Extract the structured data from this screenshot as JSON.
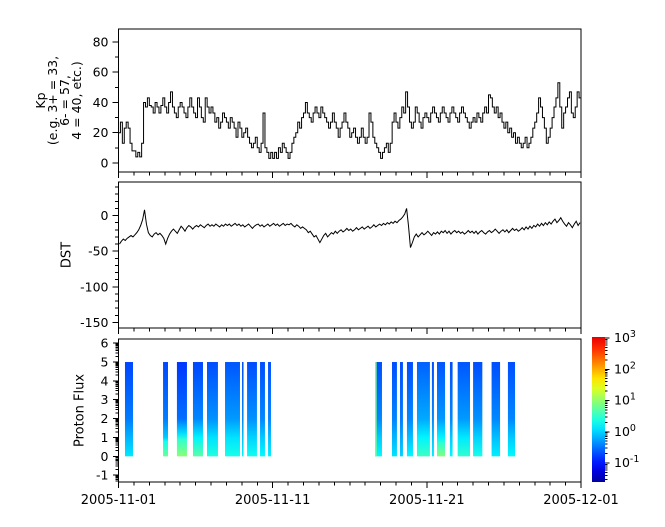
{
  "figure": {
    "background": "#ffffff",
    "axis_color": "#000000",
    "line_color": "#000000"
  },
  "x_axis": {
    "tick_labels": [
      "2005-11-01",
      "2005-11-11",
      "2005-11-21",
      "2005-12-01"
    ],
    "tick_days": [
      0,
      10,
      20,
      30
    ],
    "minor_step_days": 1,
    "range_days": [
      0,
      30
    ]
  },
  "panels": {
    "kp": {
      "ylabel_lines": [
        "Kp",
        "(e.g. 3+ = 33,",
        "6- = 57,",
        "4 = 40, etc.)"
      ],
      "yticks": [
        0,
        20,
        40,
        60,
        80
      ],
      "yminors": [
        10,
        30,
        50,
        70
      ],
      "ylim": [
        -6,
        88.6
      ]
    },
    "dst": {
      "ylabel": "DST",
      "yticks": [
        0,
        -50,
        -100,
        -150
      ],
      "yminor_step": 10,
      "ylim": [
        -157.7,
        47
      ]
    },
    "proton": {
      "ylabel": "Proton Flux",
      "yticks": [
        6,
        5,
        4,
        3,
        2,
        1,
        0,
        -1
      ],
      "ylim": [
        -1.36,
        6.22
      ],
      "bar_value_span": [
        0,
        5
      ]
    }
  },
  "colorbar": {
    "labels": [
      {
        "base": "10",
        "exp": "3"
      },
      {
        "base": "10",
        "exp": "2"
      },
      {
        "base": "10",
        "exp": "1"
      },
      {
        "base": "10",
        "exp": "0"
      },
      {
        "base": "10",
        "exp": "-1"
      }
    ],
    "decades": [
      3,
      2,
      1,
      0,
      -1
    ],
    "log_range": [
      -1.61,
      3.03
    ],
    "colormap": "jet"
  },
  "chart_data": [
    {
      "type": "line",
      "style": "step",
      "title": "Kp index (value = Kp*10, e.g. 3+ = 33)",
      "x_start": "2005-11-01",
      "x_step_hours": 3,
      "ylim": [
        -6,
        88.6
      ],
      "values": [
        20,
        27,
        13,
        23,
        27,
        23,
        13,
        8,
        8,
        4,
        7,
        4,
        13,
        40,
        37,
        43,
        38,
        37,
        33,
        40,
        37,
        33,
        38,
        43,
        37,
        33,
        40,
        47,
        37,
        33,
        30,
        37,
        40,
        37,
        33,
        30,
        37,
        43,
        37,
        33,
        30,
        43,
        37,
        30,
        27,
        43,
        37,
        33,
        37,
        33,
        27,
        30,
        23,
        27,
        33,
        30,
        27,
        23,
        30,
        27,
        23,
        17,
        27,
        23,
        17,
        20,
        23,
        17,
        13,
        10,
        13,
        17,
        10,
        7,
        13,
        33,
        10,
        7,
        3,
        7,
        3,
        7,
        3,
        10,
        7,
        13,
        10,
        7,
        3,
        7,
        13,
        17,
        20,
        27,
        23,
        30,
        33,
        40,
        33,
        30,
        27,
        33,
        37,
        33,
        30,
        37,
        33,
        30,
        27,
        23,
        27,
        33,
        27,
        23,
        17,
        23,
        27,
        33,
        27,
        23,
        17,
        20,
        23,
        17,
        13,
        17,
        23,
        17,
        13,
        17,
        33,
        27,
        17,
        13,
        10,
        7,
        3,
        7,
        10,
        13,
        7,
        13,
        27,
        33,
        27,
        23,
        30,
        37,
        33,
        47,
        37,
        27,
        23,
        27,
        37,
        33,
        27,
        23,
        30,
        33,
        30,
        27,
        33,
        37,
        33,
        30,
        27,
        33,
        37,
        33,
        30,
        27,
        33,
        37,
        33,
        30,
        27,
        33,
        37,
        33,
        30,
        27,
        23,
        27,
        30,
        27,
        33,
        30,
        27,
        33,
        37,
        33,
        45,
        43,
        37,
        33,
        37,
        30,
        33,
        27,
        23,
        27,
        20,
        23,
        17,
        20,
        13,
        17,
        13,
        10,
        13,
        17,
        10,
        13,
        17,
        23,
        27,
        33,
        43,
        37,
        30,
        23,
        13,
        17,
        23,
        30,
        37,
        43,
        53,
        37,
        23,
        33,
        37,
        43,
        47,
        33,
        30,
        37,
        47,
        43
      ]
    },
    {
      "type": "line",
      "style": "linear",
      "title": "DST (nT)",
      "x_start": "2005-11-01",
      "x_step_hours": 3,
      "ylim": [
        -157.7,
        47
      ],
      "values": [
        -40,
        -36,
        -33,
        -35,
        -32,
        -30,
        -28,
        -30,
        -27,
        -24,
        -20,
        -14,
        -6,
        8,
        -12,
        -24,
        -28,
        -30,
        -26,
        -24,
        -27,
        -25,
        -28,
        -32,
        -40,
        -32,
        -26,
        -22,
        -19,
        -22,
        -25,
        -20,
        -15,
        -18,
        -22,
        -17,
        -14,
        -16,
        -19,
        -16,
        -14,
        -16,
        -13,
        -15,
        -17,
        -14,
        -12,
        -15,
        -13,
        -15,
        -12,
        -14,
        -16,
        -13,
        -15,
        -12,
        -14,
        -12,
        -15,
        -13,
        -11,
        -14,
        -12,
        -15,
        -13,
        -16,
        -14,
        -12,
        -15,
        -18,
        -15,
        -13,
        -12,
        -15,
        -13,
        -16,
        -14,
        -12,
        -15,
        -13,
        -11,
        -14,
        -12,
        -15,
        -13,
        -11,
        -14,
        -12,
        -13,
        -11,
        -14,
        -16,
        -13,
        -15,
        -18,
        -16,
        -18,
        -20,
        -24,
        -22,
        -26,
        -30,
        -28,
        -33,
        -38,
        -33,
        -28,
        -25,
        -30,
        -27,
        -24,
        -26,
        -22,
        -25,
        -22,
        -20,
        -23,
        -21,
        -18,
        -21,
        -19,
        -22,
        -20,
        -17,
        -20,
        -18,
        -16,
        -19,
        -17,
        -15,
        -18,
        -16,
        -13,
        -16,
        -14,
        -12,
        -14,
        -11,
        -13,
        -10,
        -12,
        -9,
        -11,
        -8,
        -10,
        -7,
        -5,
        -2,
        2,
        10,
        -15,
        -45,
        -38,
        -30,
        -26,
        -30,
        -27,
        -24,
        -27,
        -25,
        -22,
        -25,
        -28,
        -24,
        -26,
        -23,
        -26,
        -22,
        -24,
        -21,
        -25,
        -22,
        -26,
        -23,
        -21,
        -24,
        -22,
        -25,
        -23,
        -26,
        -24,
        -21,
        -24,
        -22,
        -25,
        -22,
        -26,
        -23,
        -21,
        -24,
        -26,
        -23,
        -21,
        -24,
        -22,
        -19,
        -22,
        -25,
        -22,
        -20,
        -23,
        -20,
        -24,
        -21,
        -18,
        -21,
        -19,
        -22,
        -20,
        -17,
        -20,
        -16,
        -19,
        -15,
        -18,
        -14,
        -16,
        -12,
        -15,
        -11,
        -14,
        -10,
        -13,
        -9,
        -12,
        -8,
        -5,
        -10,
        -7,
        -3,
        -8,
        -12,
        -15,
        -10,
        -13,
        -17,
        -12,
        -8,
        -14,
        -10
      ]
    },
    {
      "type": "heatmap",
      "title": "Proton Flux spectrogram",
      "flux_scale": "log10, jet colormap, 1e-1 to 1e3",
      "bar_y_span": [
        0,
        5
      ],
      "bars": [
        {
          "d0": 0.42,
          "d1": 0.94,
          "profile": [
            [
              5,
              0.18
            ],
            [
              2,
              0.35
            ],
            [
              1,
              0.7
            ],
            [
              0,
              1.3
            ]
          ]
        },
        {
          "d0": 2.89,
          "d1": 3.21,
          "profile": [
            [
              5,
              0.18
            ],
            [
              2,
              0.35
            ],
            [
              1,
              0.9
            ],
            [
              0.8,
              2
            ],
            [
              0,
              6
            ]
          ]
        },
        {
          "d0": 3.79,
          "d1": 4.44,
          "profile": [
            [
              5,
              0.15
            ],
            [
              2,
              0.3
            ],
            [
              1.2,
              1.2
            ],
            [
              0.9,
              3
            ],
            [
              0,
              9
            ]
          ]
        },
        {
          "d0": 4.83,
          "d1": 5.48,
          "profile": [
            [
              5,
              0.18
            ],
            [
              2,
              0.4
            ],
            [
              1,
              1.5
            ],
            [
              0,
              5
            ]
          ]
        },
        {
          "d0": 5.74,
          "d1": 6.45,
          "profile": [
            [
              5,
              0.2
            ],
            [
              2,
              0.45
            ],
            [
              1,
              1.2
            ],
            [
              0,
              2.5
            ]
          ]
        },
        {
          "d0": 6.91,
          "d1": 7.88,
          "profile": [
            [
              5,
              0.22
            ],
            [
              2,
              0.5
            ],
            [
              1,
              1.2
            ],
            [
              0,
              2.2
            ]
          ]
        },
        {
          "d0": 8.01,
          "d1": 8.11,
          "profile": [
            [
              5,
              0.2
            ],
            [
              2,
              0.4
            ],
            [
              1,
              0.8
            ],
            [
              0,
              1.5
            ]
          ]
        },
        {
          "d0": 8.34,
          "d1": 8.98,
          "profile": [
            [
              5,
              0.2
            ],
            [
              2,
              0.45
            ],
            [
              1,
              1.0
            ],
            [
              0,
              2.0
            ]
          ]
        },
        {
          "d0": 9.18,
          "d1": 9.5,
          "profile": [
            [
              5,
              0.2
            ],
            [
              2,
              0.4
            ],
            [
              1,
              0.9
            ],
            [
              0,
              1.6
            ]
          ]
        },
        {
          "d0": 9.7,
          "d1": 9.89,
          "profile": [
            [
              5,
              0.2
            ],
            [
              2,
              0.38
            ],
            [
              1,
              0.8
            ],
            [
              0,
              1.4
            ]
          ]
        },
        {
          "d0": 16.64,
          "d1": 17.09,
          "edge_flux": 8,
          "profile": [
            [
              5,
              0.2
            ],
            [
              2,
              0.4
            ],
            [
              1,
              0.9
            ],
            [
              0,
              1.6
            ]
          ]
        },
        {
          "d0": 17.74,
          "d1": 18.06,
          "profile": [
            [
              5,
              0.2
            ],
            [
              2,
              0.38
            ],
            [
              1,
              0.7
            ],
            [
              0,
              1.2
            ]
          ]
        },
        {
          "d0": 18.26,
          "d1": 18.45,
          "profile": [
            [
              5,
              0.2
            ],
            [
              2,
              0.35
            ],
            [
              1,
              0.6
            ],
            [
              0,
              1.0
            ]
          ]
        },
        {
          "d0": 18.71,
          "d1": 19.1,
          "profile": [
            [
              5,
              0.2
            ],
            [
              2,
              0.4
            ],
            [
              1,
              0.8
            ],
            [
              0,
              1.6
            ]
          ]
        },
        {
          "d0": 19.36,
          "d1": 20.2,
          "profile": [
            [
              5,
              0.25
            ],
            [
              2,
              0.6
            ],
            [
              1,
              1.5
            ],
            [
              0,
              3.5
            ]
          ]
        },
        {
          "d0": 20.33,
          "d1": 20.46,
          "profile": [
            [
              5,
              0.2
            ],
            [
              2,
              0.4
            ],
            [
              1,
              0.8
            ],
            [
              0,
              1.4
            ]
          ]
        },
        {
          "d0": 20.66,
          "d1": 21.18,
          "profile": [
            [
              5,
              0.22
            ],
            [
              2,
              0.5
            ],
            [
              1,
              1.5
            ],
            [
              0.7,
              3
            ],
            [
              0,
              8
            ]
          ]
        },
        {
          "d0": 21.5,
          "d1": 21.67,
          "profile": [
            [
              5,
              0.2
            ],
            [
              2,
              0.4
            ],
            [
              1,
              0.9
            ],
            [
              0,
              1.6
            ]
          ]
        },
        {
          "d0": 22.0,
          "d1": 22.8,
          "profile": [
            [
              5,
              0.22
            ],
            [
              2,
              0.5
            ],
            [
              1,
              1.3
            ],
            [
              0,
              3.0
            ]
          ]
        },
        {
          "d0": 23.0,
          "d1": 23.6,
          "profile": [
            [
              5,
              0.2
            ],
            [
              2,
              0.45
            ],
            [
              1,
              1.0
            ],
            [
              0,
              2.2
            ]
          ]
        },
        {
          "d0": 24.2,
          "d1": 24.75,
          "profile": [
            [
              5,
              0.2
            ],
            [
              2,
              0.4
            ],
            [
              1,
              0.8
            ],
            [
              0,
              1.4
            ]
          ]
        },
        {
          "d0": 25.26,
          "d1": 25.72,
          "profile": [
            [
              5,
              0.2
            ],
            [
              2,
              0.4
            ],
            [
              1,
              0.9
            ],
            [
              0,
              1.6
            ]
          ]
        }
      ]
    }
  ]
}
